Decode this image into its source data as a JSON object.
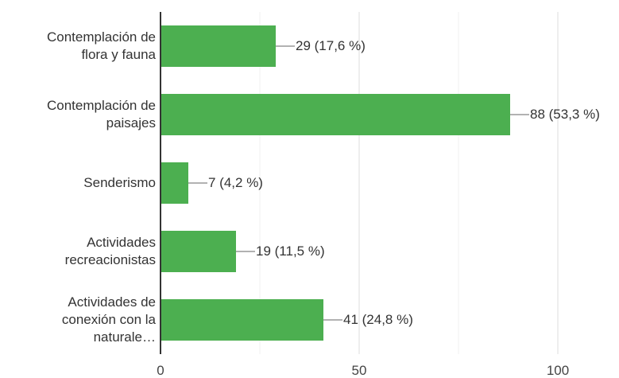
{
  "chart_data": {
    "type": "bar",
    "orientation": "horizontal",
    "categories": [
      "Contemplación de\nflora y fauna",
      "Contemplación de\npaisajes",
      "Senderismo",
      "Actividades\nrecreacionistas",
      "Actividades de\nconexión con la\nnaturale…"
    ],
    "values": [
      29,
      88,
      7,
      19,
      41
    ],
    "value_labels": [
      "29 (17,6 %)",
      "88 (53,3 %)",
      "7 (4,2 %)",
      "19 (11,5 %)",
      "41 (24,8 %)"
    ],
    "color": "#4caf50",
    "xlim": [
      0,
      100
    ],
    "xticks": [
      0,
      50,
      100
    ],
    "minor_xticks": [
      25,
      75
    ],
    "grid": true
  }
}
